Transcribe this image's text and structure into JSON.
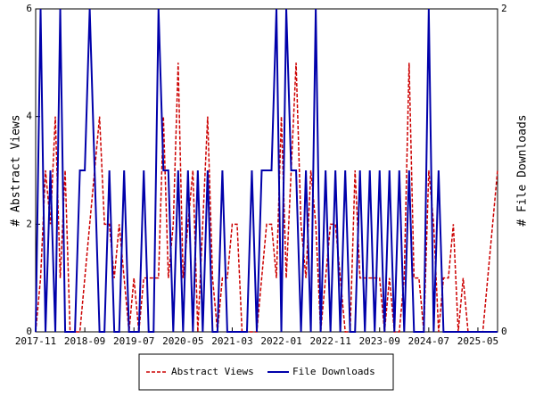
{
  "chart_data": {
    "type": "line",
    "x": [
      "2017-11",
      "2017-12",
      "2018-01",
      "2018-02",
      "2018-03",
      "2018-04",
      "2018-05",
      "2018-06",
      "2018-07",
      "2018-08",
      "2018-09",
      "2018-10",
      "2018-11",
      "2018-12",
      "2019-01",
      "2019-02",
      "2019-03",
      "2019-04",
      "2019-05",
      "2019-06",
      "2019-07",
      "2019-08",
      "2019-09",
      "2019-10",
      "2019-11",
      "2019-12",
      "2020-01",
      "2020-02",
      "2020-03",
      "2020-04",
      "2020-05",
      "2020-06",
      "2020-07",
      "2020-08",
      "2020-09",
      "2020-10",
      "2020-11",
      "2020-12",
      "2021-01",
      "2021-02",
      "2021-03",
      "2021-04",
      "2021-05",
      "2021-06",
      "2021-07",
      "2021-08",
      "2021-09",
      "2021-10",
      "2021-11",
      "2021-12",
      "2022-01",
      "2022-02",
      "2022-03",
      "2022-04",
      "2022-05",
      "2022-06",
      "2022-07",
      "2022-08",
      "2022-09",
      "2022-10",
      "2022-11",
      "2022-12",
      "2023-01",
      "2023-02",
      "2023-03",
      "2023-04",
      "2023-05",
      "2023-06",
      "2023-07",
      "2023-08",
      "2023-09",
      "2023-10",
      "2023-11",
      "2023-12",
      "2024-01",
      "2024-02",
      "2024-03",
      "2024-04",
      "2024-05",
      "2024-06",
      "2024-07",
      "2024-08",
      "2024-09",
      "2024-10",
      "2024-11",
      "2024-12",
      "2025-01",
      "2025-02",
      "2025-03",
      "2025-04",
      "2025-05",
      "2025-06",
      "2025-07",
      "2025-08",
      "2025-09"
    ],
    "series": [
      {
        "name": "Abstract Views",
        "color": "#cc0000",
        "dash": true,
        "values": [
          0,
          1,
          3,
          2,
          4,
          1,
          3,
          0,
          0,
          0,
          1,
          2,
          3,
          4,
          2,
          2,
          1,
          2,
          1,
          0,
          1,
          0,
          1,
          1,
          1,
          1,
          4,
          1,
          2,
          5,
          1,
          2,
          3,
          0,
          2,
          4,
          1,
          0,
          1,
          1,
          2,
          2,
          0,
          0,
          0,
          0,
          1,
          2,
          2,
          1,
          4,
          1,
          3,
          5,
          2,
          1,
          3,
          2,
          0,
          1,
          2,
          2,
          1,
          0,
          0,
          3,
          1,
          1,
          1,
          1,
          1,
          0,
          1,
          0,
          0,
          1,
          5,
          1,
          1,
          0,
          3,
          2,
          0,
          1,
          1,
          2,
          0,
          1,
          0,
          0,
          0,
          0,
          1,
          2,
          3
        ]
      },
      {
        "name": "File Downloads",
        "color": "#0000aa",
        "dash": false,
        "axis": "y2",
        "values": [
          0,
          2,
          0,
          1,
          0,
          2,
          0,
          0,
          0,
          1,
          1,
          2,
          1,
          0,
          0,
          1,
          0,
          0,
          1,
          0,
          0,
          0,
          1,
          0,
          0,
          2,
          1,
          1,
          0,
          1,
          0,
          1,
          0,
          1,
          0,
          1,
          0,
          0,
          1,
          0,
          0,
          0,
          0,
          0,
          1,
          0,
          1,
          1,
          1,
          2,
          0,
          2,
          1,
          1,
          0,
          1,
          0,
          2,
          0,
          1,
          0,
          1,
          0,
          1,
          0,
          0,
          1,
          0,
          1,
          0,
          1,
          0,
          1,
          0,
          1,
          0,
          1,
          0,
          0,
          0,
          2,
          0,
          1,
          0,
          0,
          0,
          0,
          0,
          0,
          0,
          0,
          0,
          0,
          0,
          0
        ]
      }
    ],
    "xticks": [
      "2017-11",
      "2018-09",
      "2019-07",
      "2020-05",
      "2021-03",
      "2022-01",
      "2022-11",
      "2023-09",
      "2024-07",
      "2025-05"
    ],
    "ylabel": "# Abstract Views",
    "ylim": [
      0,
      6
    ],
    "yticks": [
      0,
      2,
      4,
      6
    ],
    "y2label": "# File Downloads",
    "y2lim": [
      0,
      2
    ],
    "y2ticks": [
      0,
      2
    ],
    "legend": "bottom"
  }
}
